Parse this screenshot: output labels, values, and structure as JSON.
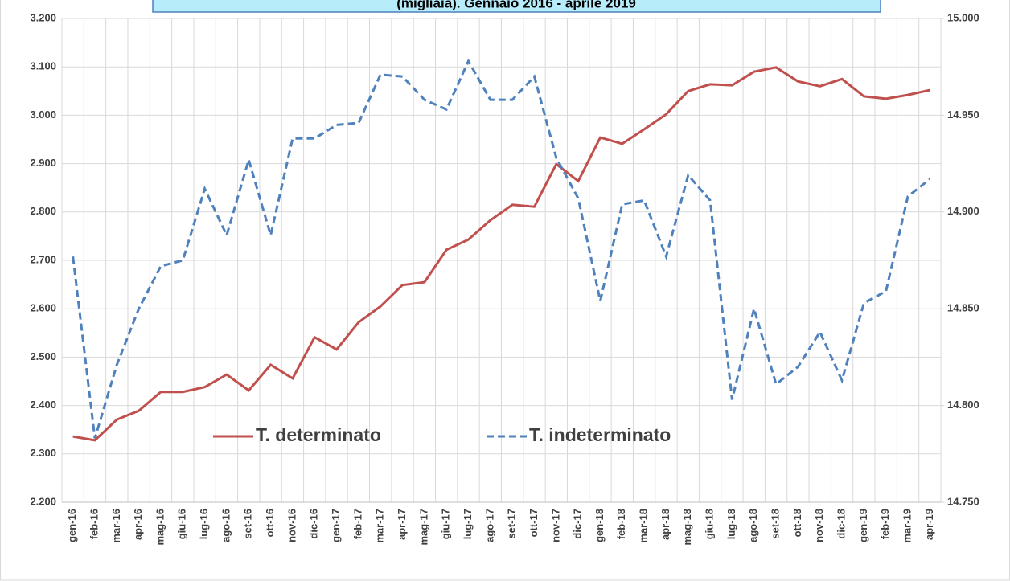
{
  "chart_data": {
    "type": "line",
    "title": "(migliaia). Gennaio 2016 - aprile 2019",
    "categories": [
      "gen-16",
      "feb-16",
      "mar-16",
      "apr-16",
      "mag-16",
      "giu-16",
      "lug-16",
      "ago-16",
      "set-16",
      "ott-16",
      "nov-16",
      "dic-16",
      "gen-17",
      "feb-17",
      "mar-17",
      "apr-17",
      "mag-17",
      "giu-17",
      "lug-17",
      "ago-17",
      "set-17",
      "ott-17",
      "nov-17",
      "dic-17",
      "gen-18",
      "feb-18",
      "mar-18",
      "apr-18",
      "mag-18",
      "giu-18",
      "lug-18",
      "ago-18",
      "set-18",
      "ott-18",
      "nov-18",
      "dic-18",
      "gen-19",
      "feb-19",
      "mar-19",
      "apr-19"
    ],
    "series": [
      {
        "name": "T. determinato",
        "color": "#c0504d",
        "dash": false,
        "values": [
          2336,
          2328,
          2371,
          2389,
          2428,
          2428,
          2438,
          2464,
          2431,
          2484,
          2456,
          2541,
          2516,
          2572,
          2605,
          2649,
          2655,
          2722,
          2743,
          2783,
          2815,
          2811,
          2899,
          2864,
          2954,
          2941,
          2971,
          3002,
          3050,
          3064,
          3062,
          3090,
          3099,
          3070,
          3060,
          3075,
          3039,
          3034,
          3042,
          3052
        ]
      },
      {
        "name": "T. indeterminato",
        "color": "#4f81bd",
        "dash": true,
        "axis": "y2",
        "values": [
          14877,
          14783,
          14821,
          14850,
          14872,
          14875,
          14912,
          14888,
          14927,
          14888,
          14938,
          14938,
          14945,
          14946,
          14971,
          14970,
          14958,
          14953,
          14978,
          14958,
          14958,
          14970,
          14928,
          14907,
          14854,
          14904,
          14906,
          14877,
          14919,
          14906,
          14803,
          14850,
          14811,
          14820,
          14838,
          14813,
          14853,
          14859,
          14908,
          14917
        ]
      }
    ],
    "ylim": [
      2200,
      3200
    ],
    "yticks": [
      {
        "value": 2200,
        "label": "2.200"
      },
      {
        "value": 2300,
        "label": "2.300"
      },
      {
        "value": 2400,
        "label": "2.400"
      },
      {
        "value": 2500,
        "label": "2.500"
      },
      {
        "value": 2600,
        "label": "2.600"
      },
      {
        "value": 2700,
        "label": "2.700"
      },
      {
        "value": 2800,
        "label": "2.800"
      },
      {
        "value": 2900,
        "label": "2.900"
      },
      {
        "value": 3000,
        "label": "3.000"
      },
      {
        "value": 3100,
        "label": "3.100"
      },
      {
        "value": 3200,
        "label": "3.200"
      }
    ],
    "y2lim": [
      14750,
      15000
    ],
    "y2ticks": [
      {
        "value": 14750,
        "label": "14.750"
      },
      {
        "value": 14800,
        "label": "14.800"
      },
      {
        "value": 14850,
        "label": "14.850"
      },
      {
        "value": 14900,
        "label": "14.900"
      },
      {
        "value": 14950,
        "label": "14.950"
      },
      {
        "value": 15000,
        "label": "15.000"
      }
    ],
    "grid": true
  }
}
